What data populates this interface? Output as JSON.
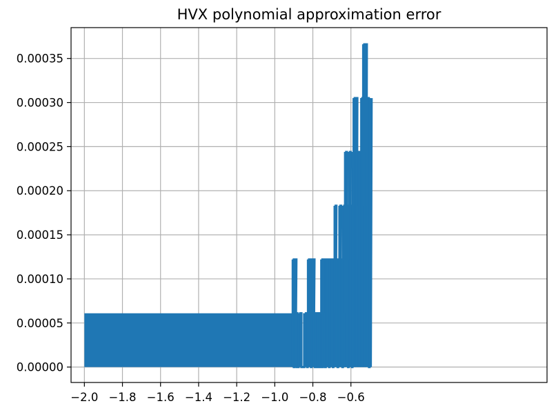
{
  "chart_data": {
    "type": "line",
    "title": "HVX polynomial approximation error",
    "xlabel": "",
    "ylabel": "",
    "xlim": [
      -2.07,
      0.43
    ],
    "ylim": [
      -1.75e-05,
      0.000385
    ],
    "grid": true,
    "legend": "none",
    "x_ticks": [
      {
        "value": -2.0,
        "label": "−2.0"
      },
      {
        "value": -1.8,
        "label": "−1.8"
      },
      {
        "value": -1.6,
        "label": "−1.6"
      },
      {
        "value": -1.4,
        "label": "−1.4"
      },
      {
        "value": -1.2,
        "label": "−1.2"
      },
      {
        "value": -1.0,
        "label": "−1.0"
      },
      {
        "value": -0.8,
        "label": "−0.8"
      },
      {
        "value": -0.6,
        "label": "−0.6"
      }
    ],
    "y_ticks": [
      {
        "value": 0.0,
        "label": "0.00000"
      },
      {
        "value": 5e-05,
        "label": "0.00005"
      },
      {
        "value": 0.0001,
        "label": "0.00010"
      },
      {
        "value": 0.00015,
        "label": "0.00015"
      },
      {
        "value": 0.0002,
        "label": "0.00020"
      },
      {
        "value": 0.00025,
        "label": "0.00025"
      },
      {
        "value": 0.0003,
        "label": "0.00030"
      },
      {
        "value": 0.00035,
        "label": "0.00035"
      }
    ],
    "series": [
      {
        "color": "#1f77b4",
        "levels": [
          0.0,
          6.1e-05,
          0.000122,
          0.000183,
          0.000244,
          0.000305,
          0.000366
        ],
        "dense_band": {
          "x_start": -2.0,
          "x_end": -0.905,
          "low": 0.0,
          "high": 6.1e-05
        },
        "x": [
          -0.905,
          -0.9,
          -0.895,
          -0.89,
          -0.885,
          -0.875,
          -0.86,
          -0.845,
          -0.83,
          -0.825,
          -0.82,
          -0.815,
          -0.81,
          -0.805,
          -0.8,
          -0.795,
          -0.79,
          -0.785,
          -0.78,
          -0.775,
          -0.77,
          -0.765,
          -0.76,
          -0.755,
          -0.75,
          -0.745,
          -0.74,
          -0.735,
          -0.73,
          -0.725,
          -0.72,
          -0.715,
          -0.71,
          -0.705,
          -0.7,
          -0.695,
          -0.69,
          -0.685,
          -0.68,
          -0.675,
          -0.67,
          -0.665,
          -0.66,
          -0.655,
          -0.65,
          -0.645,
          -0.64,
          -0.635,
          -0.63,
          -0.625,
          -0.62,
          -0.615,
          -0.61,
          -0.605,
          -0.6,
          -0.595,
          -0.59,
          -0.585,
          -0.58,
          -0.575,
          -0.57,
          -0.565,
          -0.56,
          -0.555,
          -0.55,
          -0.545,
          -0.54,
          -0.535,
          -0.53,
          -0.525,
          -0.52,
          -0.515,
          -0.51,
          -0.505,
          -0.5
        ],
        "y": [
          0.000122,
          0.0,
          0.000122,
          6.1e-05,
          0.0,
          6.1e-05,
          0.0,
          6.1e-05,
          0.0,
          0.000122,
          6.1e-05,
          0.000122,
          0.0,
          6.1e-05,
          0.000122,
          6.1e-05,
          0.0,
          6.1e-05,
          0.0,
          6.1e-05,
          0.0,
          6.1e-05,
          0.0,
          0.000122,
          0.0,
          0.000122,
          6.1e-05,
          0.0,
          0.000122,
          6.1e-05,
          0.000122,
          0.0,
          0.000122,
          6.1e-05,
          0.000122,
          0.0,
          0.000122,
          0.000183,
          6.1e-05,
          0.000122,
          0.0,
          0.000122,
          0.000183,
          6.1e-05,
          0.000122,
          0.0,
          0.000183,
          0.000122,
          0.000244,
          6.1e-05,
          0.000183,
          0.0,
          0.000244,
          0.000122,
          0.000183,
          0.0,
          0.000244,
          0.000305,
          0.000183,
          0.000305,
          0.000244,
          0.000183,
          0.000122,
          0.000244,
          6.1e-05,
          0.000305,
          0.000244,
          0.000366,
          0.000183,
          0.000366,
          0.000244,
          0.000305,
          0.000183,
          0.0,
          0.000305
        ]
      }
    ]
  }
}
